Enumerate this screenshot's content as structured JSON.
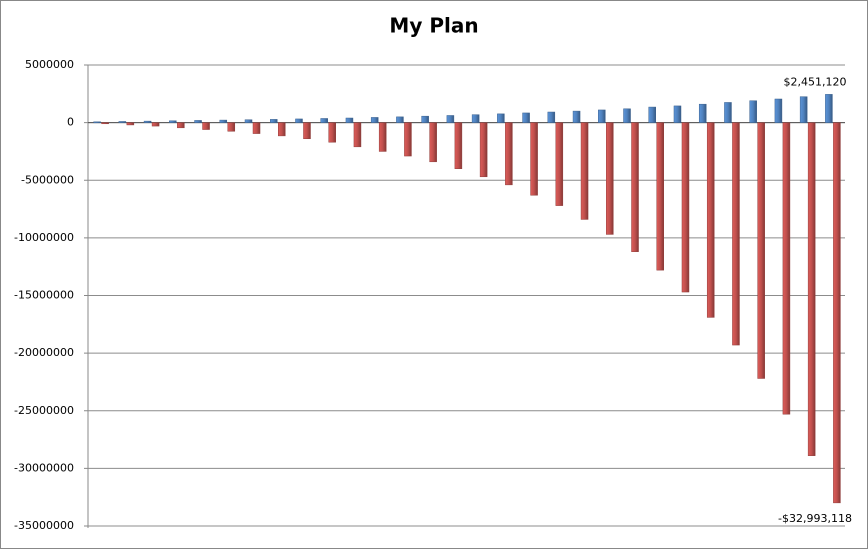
{
  "chart_data": {
    "type": "bar",
    "title": "My Plan",
    "categories": [
      null,
      null,
      null,
      null,
      null,
      null,
      null,
      null,
      null,
      null,
      null,
      null,
      null,
      null,
      null,
      null,
      null,
      null,
      null,
      null,
      null,
      null,
      null,
      null,
      null,
      null,
      null,
      null,
      null,
      null
    ],
    "series": [
      {
        "color": "#4f81bd",
        "values": [
          70000,
          100000,
          130000,
          160000,
          190000,
          220000,
          250000,
          280000,
          320000,
          360000,
          400000,
          450000,
          500000,
          560000,
          620000,
          690000,
          760000,
          840000,
          920000,
          1000000,
          1100000,
          1200000,
          1350000,
          1450000,
          1600000,
          1750000,
          1900000,
          2050000,
          2250000,
          2451120
        ],
        "value_labels": [
          null,
          null,
          null,
          null,
          null,
          null,
          null,
          null,
          null,
          null,
          null,
          null,
          null,
          null,
          null,
          null,
          null,
          null,
          null,
          null,
          null,
          null,
          null,
          null,
          null,
          null,
          null,
          null,
          null,
          "$2,451,120"
        ]
      },
      {
        "color": "#c0504d",
        "values": [
          -100000,
          -200000,
          -300000,
          -450000,
          -600000,
          -750000,
          -950000,
          -1150000,
          -1400000,
          -1700000,
          -2100000,
          -2500000,
          -2900000,
          -3400000,
          -4000000,
          -4700000,
          -5400000,
          -6300000,
          -7200000,
          -8400000,
          -9700000,
          -11200000,
          -12800000,
          -14700000,
          -16900000,
          -19300000,
          -22200000,
          -25300000,
          -28900000,
          -32993118
        ],
        "value_labels": [
          null,
          null,
          null,
          null,
          null,
          null,
          null,
          null,
          null,
          null,
          null,
          null,
          null,
          null,
          null,
          null,
          null,
          null,
          null,
          null,
          null,
          null,
          null,
          null,
          null,
          null,
          null,
          null,
          null,
          "-$32,993,118"
        ]
      }
    ],
    "ylim": [
      -35000000,
      5000000
    ],
    "yticks": [
      -35000000,
      -30000000,
      -25000000,
      -20000000,
      -15000000,
      -10000000,
      -5000000,
      0,
      5000000
    ],
    "grid": true
  }
}
